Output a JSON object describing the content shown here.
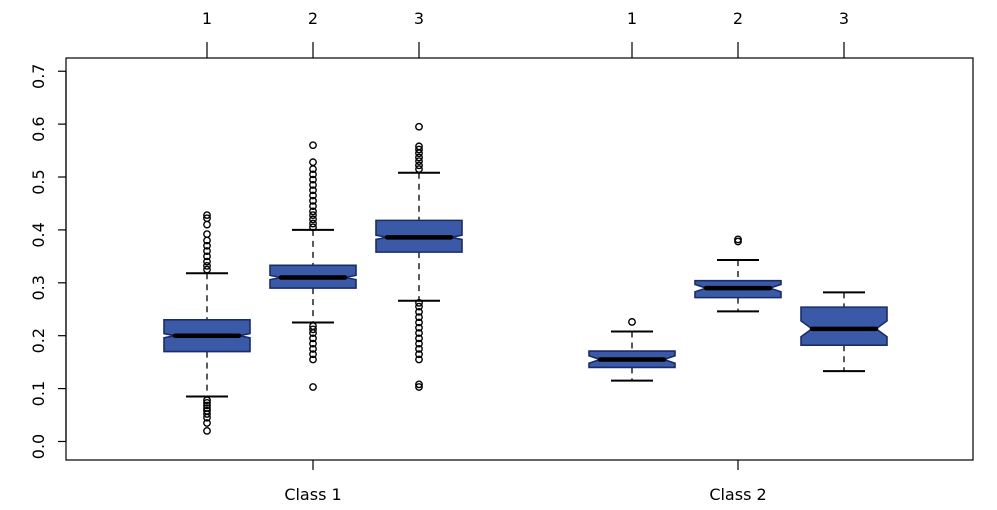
{
  "chart_data": {
    "type": "box",
    "ylim": [
      -0.035,
      0.725
    ],
    "yticks": [
      0.0,
      0.1,
      0.2,
      0.3,
      0.4,
      0.5,
      0.6,
      0.7
    ],
    "ytick_labels": [
      "0.0",
      "0.1",
      "0.2",
      "0.3",
      "0.4",
      "0.5",
      "0.6",
      "0.7"
    ],
    "top_tick_labels": [
      "1",
      "2",
      "3",
      "1",
      "2",
      "3"
    ],
    "bottom_groups": [
      "Class 1",
      "Class  2"
    ],
    "box_fill": "#3a5aa8",
    "box_stroke": "#1a2c68",
    "boxes": [
      {
        "group": "Class 1",
        "label": "1",
        "lower_whisker": 0.085,
        "q1": 0.17,
        "median": 0.2,
        "q3": 0.23,
        "upper_whisker": 0.318,
        "notch_low": 0.196,
        "notch_high": 0.204,
        "outliers": [
          0.02,
          0.035,
          0.045,
          0.052,
          0.058,
          0.063,
          0.068,
          0.073,
          0.078,
          0.325,
          0.332,
          0.34,
          0.35,
          0.36,
          0.37,
          0.38,
          0.392,
          0.41,
          0.422,
          0.428
        ]
      },
      {
        "group": "Class 1",
        "label": "2",
        "lower_whisker": 0.225,
        "q1": 0.29,
        "median": 0.31,
        "q3": 0.333,
        "upper_whisker": 0.4,
        "notch_low": 0.306,
        "notch_high": 0.314,
        "outliers": [
          0.103,
          0.155,
          0.165,
          0.175,
          0.185,
          0.195,
          0.205,
          0.212,
          0.218,
          0.405,
          0.412,
          0.42,
          0.428,
          0.435,
          0.445,
          0.455,
          0.465,
          0.475,
          0.485,
          0.495,
          0.505,
          0.515,
          0.528,
          0.56
        ]
      },
      {
        "group": "Class 1",
        "label": "3",
        "lower_whisker": 0.266,
        "q1": 0.358,
        "median": 0.386,
        "q3": 0.418,
        "upper_whisker": 0.508,
        "notch_low": 0.382,
        "notch_high": 0.39,
        "outliers": [
          0.103,
          0.108,
          0.155,
          0.165,
          0.175,
          0.185,
          0.195,
          0.205,
          0.215,
          0.225,
          0.235,
          0.245,
          0.255,
          0.262,
          0.515,
          0.522,
          0.53,
          0.537,
          0.545,
          0.552,
          0.558,
          0.595
        ]
      },
      {
        "group": "Class  2",
        "label": "1",
        "lower_whisker": 0.115,
        "q1": 0.14,
        "median": 0.155,
        "q3": 0.171,
        "upper_whisker": 0.208,
        "notch_low": 0.148,
        "notch_high": 0.162,
        "outliers": [
          0.226
        ]
      },
      {
        "group": "Class  2",
        "label": "2",
        "lower_whisker": 0.246,
        "q1": 0.272,
        "median": 0.29,
        "q3": 0.304,
        "upper_whisker": 0.343,
        "notch_low": 0.283,
        "notch_high": 0.297,
        "outliers": [
          0.378,
          0.382
        ]
      },
      {
        "group": "Class  2",
        "label": "3",
        "lower_whisker": 0.133,
        "q1": 0.182,
        "median": 0.213,
        "q3": 0.254,
        "upper_whisker": 0.282,
        "notch_low": 0.198,
        "notch_high": 0.228,
        "outliers": []
      }
    ]
  }
}
